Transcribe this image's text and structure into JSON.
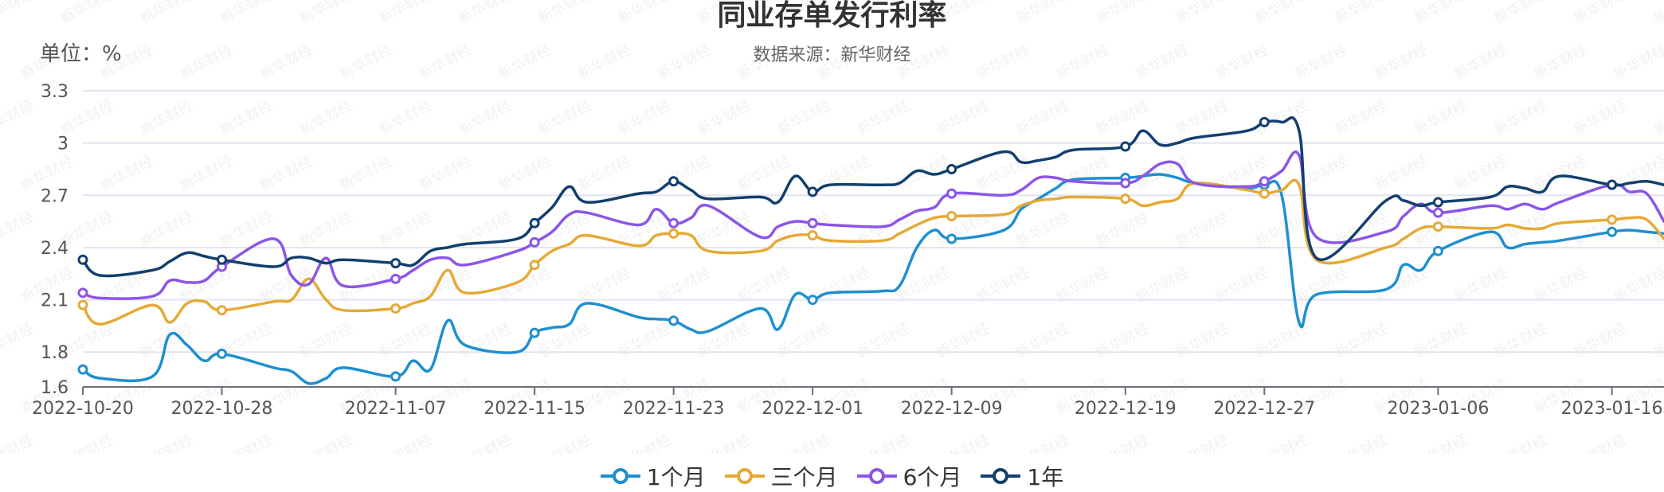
{
  "title": "同业存单发行利率",
  "subtitle": "数据来源：新华财经",
  "unit": "单位：%",
  "watermark": "新华财经",
  "legend": [
    {
      "label": "1个月",
      "color": "#1f8fd0"
    },
    {
      "label": "三个月",
      "color": "#e6a935"
    },
    {
      "label": "6个月",
      "color": "#8b55e8"
    },
    {
      "label": "1年",
      "color": "#123f6e"
    }
  ],
  "chart_data": {
    "type": "line",
    "ylim": [
      1.6,
      3.3
    ],
    "y_ticks": [
      "1.6",
      "1.8",
      "2.1",
      "2.4",
      "2.7",
      "3",
      "3.3"
    ],
    "x_ticks": [
      "2022-10-20",
      "2022-10-28",
      "2022-11-07",
      "2022-11-15",
      "2022-11-23",
      "2022-12-01",
      "2022-12-09",
      "2022-12-19",
      "2022-12-27",
      "2023-01-06",
      "2023-01-16"
    ],
    "grid": "horizontal",
    "legend_position": "bottom-center",
    "x": [
      "2022-10-20",
      "2022-10-21",
      "2022-10-24",
      "2022-10-25",
      "2022-10-26",
      "2022-10-27",
      "2022-10-28",
      "2022-10-31",
      "2022-11-01",
      "2022-11-02",
      "2022-11-03",
      "2022-11-04",
      "2022-11-07",
      "2022-11-08",
      "2022-11-09",
      "2022-11-10",
      "2022-11-11",
      "2022-11-14",
      "2022-11-15",
      "2022-11-16",
      "2022-11-17",
      "2022-11-18",
      "2022-11-21",
      "2022-11-22",
      "2022-11-23",
      "2022-11-24",
      "2022-11-25",
      "2022-11-28",
      "2022-11-29",
      "2022-11-30",
      "2022-12-01",
      "2022-12-02",
      "2022-12-05",
      "2022-12-06",
      "2022-12-07",
      "2022-12-08",
      "2022-12-09",
      "2022-12-12",
      "2022-12-13",
      "2022-12-14",
      "2022-12-15",
      "2022-12-16",
      "2022-12-19",
      "2022-12-20",
      "2022-12-21",
      "2022-12-22",
      "2022-12-23",
      "2022-12-26",
      "2022-12-27",
      "2022-12-28",
      "2022-12-29",
      "2022-12-30",
      "2023-01-03",
      "2023-01-04",
      "2023-01-05",
      "2023-01-06",
      "2023-01-09",
      "2023-01-10",
      "2023-01-11",
      "2023-01-12",
      "2023-01-13",
      "2023-01-16",
      "2023-01-17",
      "2023-01-18",
      "2023-01-19"
    ],
    "series": [
      {
        "name": "1个月",
        "values": [
          1.7,
          1.65,
          1.66,
          1.9,
          1.84,
          1.75,
          1.79,
          1.71,
          1.69,
          1.62,
          1.65,
          1.71,
          1.66,
          1.75,
          1.7,
          1.98,
          1.84,
          1.8,
          1.91,
          1.94,
          1.96,
          2.08,
          2.0,
          1.99,
          1.98,
          1.93,
          1.92,
          2.05,
          1.93,
          2.13,
          2.1,
          2.14,
          2.15,
          2.18,
          2.4,
          2.5,
          2.45,
          2.5,
          2.62,
          2.68,
          2.74,
          2.79,
          2.8,
          2.81,
          2.82,
          2.8,
          2.77,
          2.74,
          2.76,
          2.7,
          1.97,
          2.13,
          2.16,
          2.3,
          2.27,
          2.38,
          2.49,
          2.4,
          2.42,
          2.43,
          2.44,
          2.49,
          2.5,
          2.49,
          2.48
        ]
      },
      {
        "name": "三个月",
        "values": [
          2.07,
          1.96,
          2.07,
          1.97,
          2.08,
          2.09,
          2.04,
          2.09,
          2.1,
          2.22,
          2.1,
          2.04,
          2.05,
          2.08,
          2.12,
          2.27,
          2.14,
          2.2,
          2.3,
          2.38,
          2.42,
          2.47,
          2.41,
          2.47,
          2.48,
          2.47,
          2.38,
          2.38,
          2.44,
          2.47,
          2.47,
          2.44,
          2.44,
          2.48,
          2.53,
          2.57,
          2.58,
          2.59,
          2.64,
          2.67,
          2.68,
          2.69,
          2.68,
          2.64,
          2.66,
          2.68,
          2.77,
          2.73,
          2.71,
          2.73,
          2.76,
          2.33,
          2.4,
          2.45,
          2.51,
          2.52,
          2.51,
          2.53,
          2.51,
          2.51,
          2.54,
          2.56,
          2.57,
          2.56,
          2.45
        ]
      },
      {
        "name": "6个月",
        "values": [
          2.14,
          2.11,
          2.12,
          2.21,
          2.2,
          2.21,
          2.29,
          2.45,
          2.24,
          2.19,
          2.34,
          2.18,
          2.22,
          2.27,
          2.33,
          2.34,
          2.3,
          2.38,
          2.43,
          2.49,
          2.59,
          2.6,
          2.53,
          2.62,
          2.54,
          2.57,
          2.64,
          2.46,
          2.52,
          2.55,
          2.54,
          2.53,
          2.52,
          2.56,
          2.61,
          2.63,
          2.71,
          2.7,
          2.73,
          2.8,
          2.8,
          2.78,
          2.77,
          2.81,
          2.88,
          2.88,
          2.77,
          2.75,
          2.78,
          2.84,
          2.93,
          2.46,
          2.49,
          2.58,
          2.65,
          2.6,
          2.64,
          2.62,
          2.65,
          2.62,
          2.66,
          2.76,
          2.72,
          2.71,
          2.55
        ]
      },
      {
        "name": "1年",
        "values": [
          2.33,
          2.24,
          2.27,
          2.32,
          2.37,
          2.35,
          2.33,
          2.29,
          2.34,
          2.34,
          2.31,
          2.33,
          2.31,
          2.3,
          2.38,
          2.4,
          2.42,
          2.45,
          2.54,
          2.63,
          2.75,
          2.66,
          2.71,
          2.72,
          2.78,
          2.73,
          2.68,
          2.69,
          2.66,
          2.81,
          2.72,
          2.76,
          2.76,
          2.77,
          2.84,
          2.82,
          2.85,
          2.95,
          2.89,
          2.9,
          2.92,
          2.96,
          2.98,
          3.07,
          2.99,
          3.0,
          3.03,
          3.07,
          3.12,
          3.12,
          3.07,
          2.34,
          2.67,
          2.67,
          2.64,
          2.66,
          2.69,
          2.75,
          2.74,
          2.72,
          2.81,
          2.76,
          2.77,
          2.78,
          2.76
        ]
      }
    ]
  }
}
